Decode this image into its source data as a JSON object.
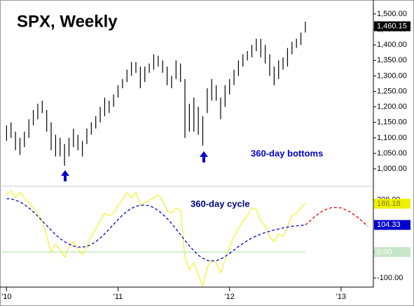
{
  "chart_data": [
    {
      "type": "range-bar",
      "title": "SPX, Weekly",
      "annotation": "360-day bottoms",
      "color": "#000000",
      "x": [
        2010,
        2010.04,
        2010.08,
        2010.12,
        2010.16,
        2010.2,
        2010.24,
        2010.28,
        2010.32,
        2010.36,
        2010.4,
        2010.44,
        2010.48,
        2010.52,
        2010.56,
        2010.6,
        2010.64,
        2010.68,
        2010.72,
        2010.76,
        2010.8,
        2010.84,
        2010.88,
        2010.92,
        2010.96,
        2011,
        2011.04,
        2011.08,
        2011.12,
        2011.16,
        2011.2,
        2011.24,
        2011.28,
        2011.32,
        2011.36,
        2011.4,
        2011.44,
        2011.48,
        2011.52,
        2011.56,
        2011.6,
        2011.64,
        2011.68,
        2011.72,
        2011.76,
        2011.8,
        2011.84,
        2011.88,
        2011.92,
        2011.96,
        2012,
        2012.04,
        2012.08,
        2012.12,
        2012.16,
        2012.2,
        2012.24,
        2012.28,
        2012.32,
        2012.36,
        2012.4,
        2012.44,
        2012.48,
        2012.52,
        2012.56,
        2012.6,
        2012.64,
        2012.68
      ],
      "low": [
        1090,
        1100,
        1060,
        1045,
        1070,
        1100,
        1140,
        1160,
        1180,
        1120,
        1060,
        1040,
        1040,
        1010,
        1040,
        1070,
        1060,
        1040,
        1080,
        1110,
        1130,
        1150,
        1170,
        1180,
        1200,
        1230,
        1260,
        1280,
        1300,
        1310,
        1260,
        1280,
        1310,
        1320,
        1330,
        1310,
        1270,
        1260,
        1290,
        1280,
        1100,
        1120,
        1120,
        1110,
        1075,
        1180,
        1220,
        1220,
        1160,
        1200,
        1240,
        1270,
        1300,
        1330,
        1350,
        1360,
        1380,
        1360,
        1340,
        1300,
        1270,
        1290,
        1320,
        1330,
        1370,
        1390,
        1400,
        1440
      ],
      "high": [
        1140,
        1150,
        1120,
        1100,
        1120,
        1160,
        1190,
        1210,
        1220,
        1190,
        1150,
        1110,
        1100,
        1080,
        1100,
        1130,
        1110,
        1090,
        1130,
        1150,
        1170,
        1200,
        1230,
        1220,
        1240,
        1270,
        1290,
        1320,
        1345,
        1345,
        1330,
        1330,
        1340,
        1370,
        1365,
        1350,
        1330,
        1300,
        1350,
        1340,
        1290,
        1210,
        1230,
        1200,
        1170,
        1260,
        1290,
        1270,
        1230,
        1270,
        1290,
        1320,
        1350,
        1370,
        1380,
        1400,
        1420,
        1420,
        1400,
        1370,
        1330,
        1350,
        1360,
        1390,
        1410,
        1420,
        1440,
        1475
      ],
      "last_label": {
        "value": 1460.15,
        "label": "1,460.15"
      },
      "xlim": [
        2009.96,
        2013.29
      ],
      "ylim": [
        946,
        1545
      ],
      "yticks": [
        {
          "value": 1500,
          "label": "1,500.00"
        },
        {
          "value": 1450,
          "label": "1,450.00"
        },
        {
          "value": 1400,
          "label": "1,400.00"
        },
        {
          "value": 1350,
          "label": "1,350.00"
        },
        {
          "value": 1300,
          "label": "1,300.00"
        },
        {
          "value": 1250,
          "label": "1,250.00"
        },
        {
          "value": 1200,
          "label": "1,200.00"
        },
        {
          "value": 1150,
          "label": "1,150.00"
        },
        {
          "value": 1100,
          "label": "1,100.00"
        },
        {
          "value": 1050,
          "label": "1,050.00"
        },
        {
          "value": 1000,
          "label": "1,000.00"
        }
      ]
    },
    {
      "type": "line",
      "annotation": "360-day cycle",
      "series": [
        {
          "color": "#f0f000",
          "dash": false,
          "x": [
            2010,
            2010.04,
            2010.08,
            2010.12,
            2010.16,
            2010.2,
            2010.24,
            2010.28,
            2010.32,
            2010.36,
            2010.4,
            2010.44,
            2010.48,
            2010.52,
            2010.56,
            2010.6,
            2010.64,
            2010.68,
            2010.72,
            2010.76,
            2010.8,
            2010.84,
            2010.88,
            2010.92,
            2010.96,
            2011,
            2011.04,
            2011.08,
            2011.12,
            2011.16,
            2011.2,
            2011.24,
            2011.28,
            2011.32,
            2011.36,
            2011.4,
            2011.44,
            2011.48,
            2011.52,
            2011.56,
            2011.6,
            2011.64,
            2011.68,
            2011.72,
            2011.76,
            2011.8,
            2011.84,
            2011.88,
            2011.92,
            2011.96,
            2012,
            2012.04,
            2012.08,
            2012.12,
            2012.16,
            2012.2,
            2012.24,
            2012.28,
            2012.32,
            2012.36,
            2012.4,
            2012.44,
            2012.48,
            2012.52,
            2012.56,
            2012.6,
            2012.64,
            2012.68
          ],
          "values": [
            220,
            235,
            210,
            230,
            210,
            190,
            170,
            150,
            120,
            60,
            0,
            30,
            10,
            -20,
            20,
            40,
            10,
            -10,
            20,
            60,
            90,
            120,
            150,
            140,
            150,
            180,
            200,
            230,
            210,
            230,
            180,
            190,
            200,
            210,
            220,
            200,
            160,
            150,
            170,
            160,
            -20,
            -70,
            -40,
            -90,
            -130,
            -60,
            -30,
            -40,
            -80,
            -30,
            20,
            60,
            90,
            120,
            140,
            170,
            165,
            120,
            100,
            60,
            40,
            70,
            60,
            100,
            140,
            150,
            170,
            186.18
          ],
          "last_label": {
            "value": 186.18,
            "label": "186.18"
          },
          "box": "#f0f000",
          "box_text": "#808000"
        },
        {
          "color": "#0000cc",
          "dash": true,
          "x": [
            2010,
            2010.04,
            2010.08,
            2010.12,
            2010.16,
            2010.2,
            2010.24,
            2010.28,
            2010.32,
            2010.36,
            2010.4,
            2010.44,
            2010.48,
            2010.52,
            2010.56,
            2010.6,
            2010.64,
            2010.68,
            2010.72,
            2010.76,
            2010.8,
            2010.84,
            2010.88,
            2010.92,
            2010.96,
            2011,
            2011.04,
            2011.08,
            2011.12,
            2011.16,
            2011.2,
            2011.24,
            2011.28,
            2011.32,
            2011.36,
            2011.4,
            2011.44,
            2011.48,
            2011.52,
            2011.56,
            2011.6,
            2011.64,
            2011.68,
            2011.72,
            2011.76,
            2011.8,
            2011.84,
            2011.88,
            2011.92,
            2011.96,
            2012,
            2012.04,
            2012.08,
            2012.12,
            2012.16,
            2012.2,
            2012.24,
            2012.28,
            2012.32,
            2012.36,
            2012.4,
            2012.44,
            2012.48,
            2012.52,
            2012.56,
            2012.6,
            2012.64,
            2012.68
          ],
          "values": [
            205,
            205,
            200,
            193,
            183,
            170,
            155,
            138,
            120,
            102,
            84,
            67,
            52,
            40,
            30,
            23,
            19,
            19,
            22,
            29,
            40,
            54,
            70,
            88,
            107,
            125,
            142,
            157,
            168,
            176,
            180,
            181,
            178,
            171,
            160,
            146,
            129,
            110,
            89,
            67,
            45,
            24,
            5,
            -12,
            -24,
            -32,
            -35,
            -33,
            -27,
            -17,
            -5,
            8,
            21,
            33,
            44,
            54,
            62,
            69,
            75,
            80,
            85,
            89,
            93,
            96,
            99,
            101,
            103,
            104.33
          ],
          "last_label": {
            "value": 104.33,
            "label": "104.33"
          },
          "box": "#0000cc",
          "box_text": "#ffffff"
        },
        {
          "color": "#dd0000",
          "dash": true,
          "x": [
            2012.68,
            2012.76,
            2012.84,
            2012.92,
            2013,
            2013.08,
            2013.16,
            2013.24
          ],
          "values": [
            104.33,
            135,
            160,
            172,
            170,
            155,
            130,
            100
          ]
        }
      ],
      "xlim": [
        2009.96,
        2013.29
      ],
      "ylim": [
        -135,
        248
      ],
      "yticks": [
        {
          "value": 200,
          "label": "200.00"
        },
        {
          "value": 0,
          "label": "0.00"
        },
        {
          "value": -100,
          "label": "-100.00"
        }
      ],
      "xticks": [
        {
          "value": 2010,
          "label": "'10"
        },
        {
          "value": 2011,
          "label": "'11"
        },
        {
          "value": 2012,
          "label": "'12"
        },
        {
          "value": 2013,
          "label": "'13"
        }
      ]
    }
  ]
}
